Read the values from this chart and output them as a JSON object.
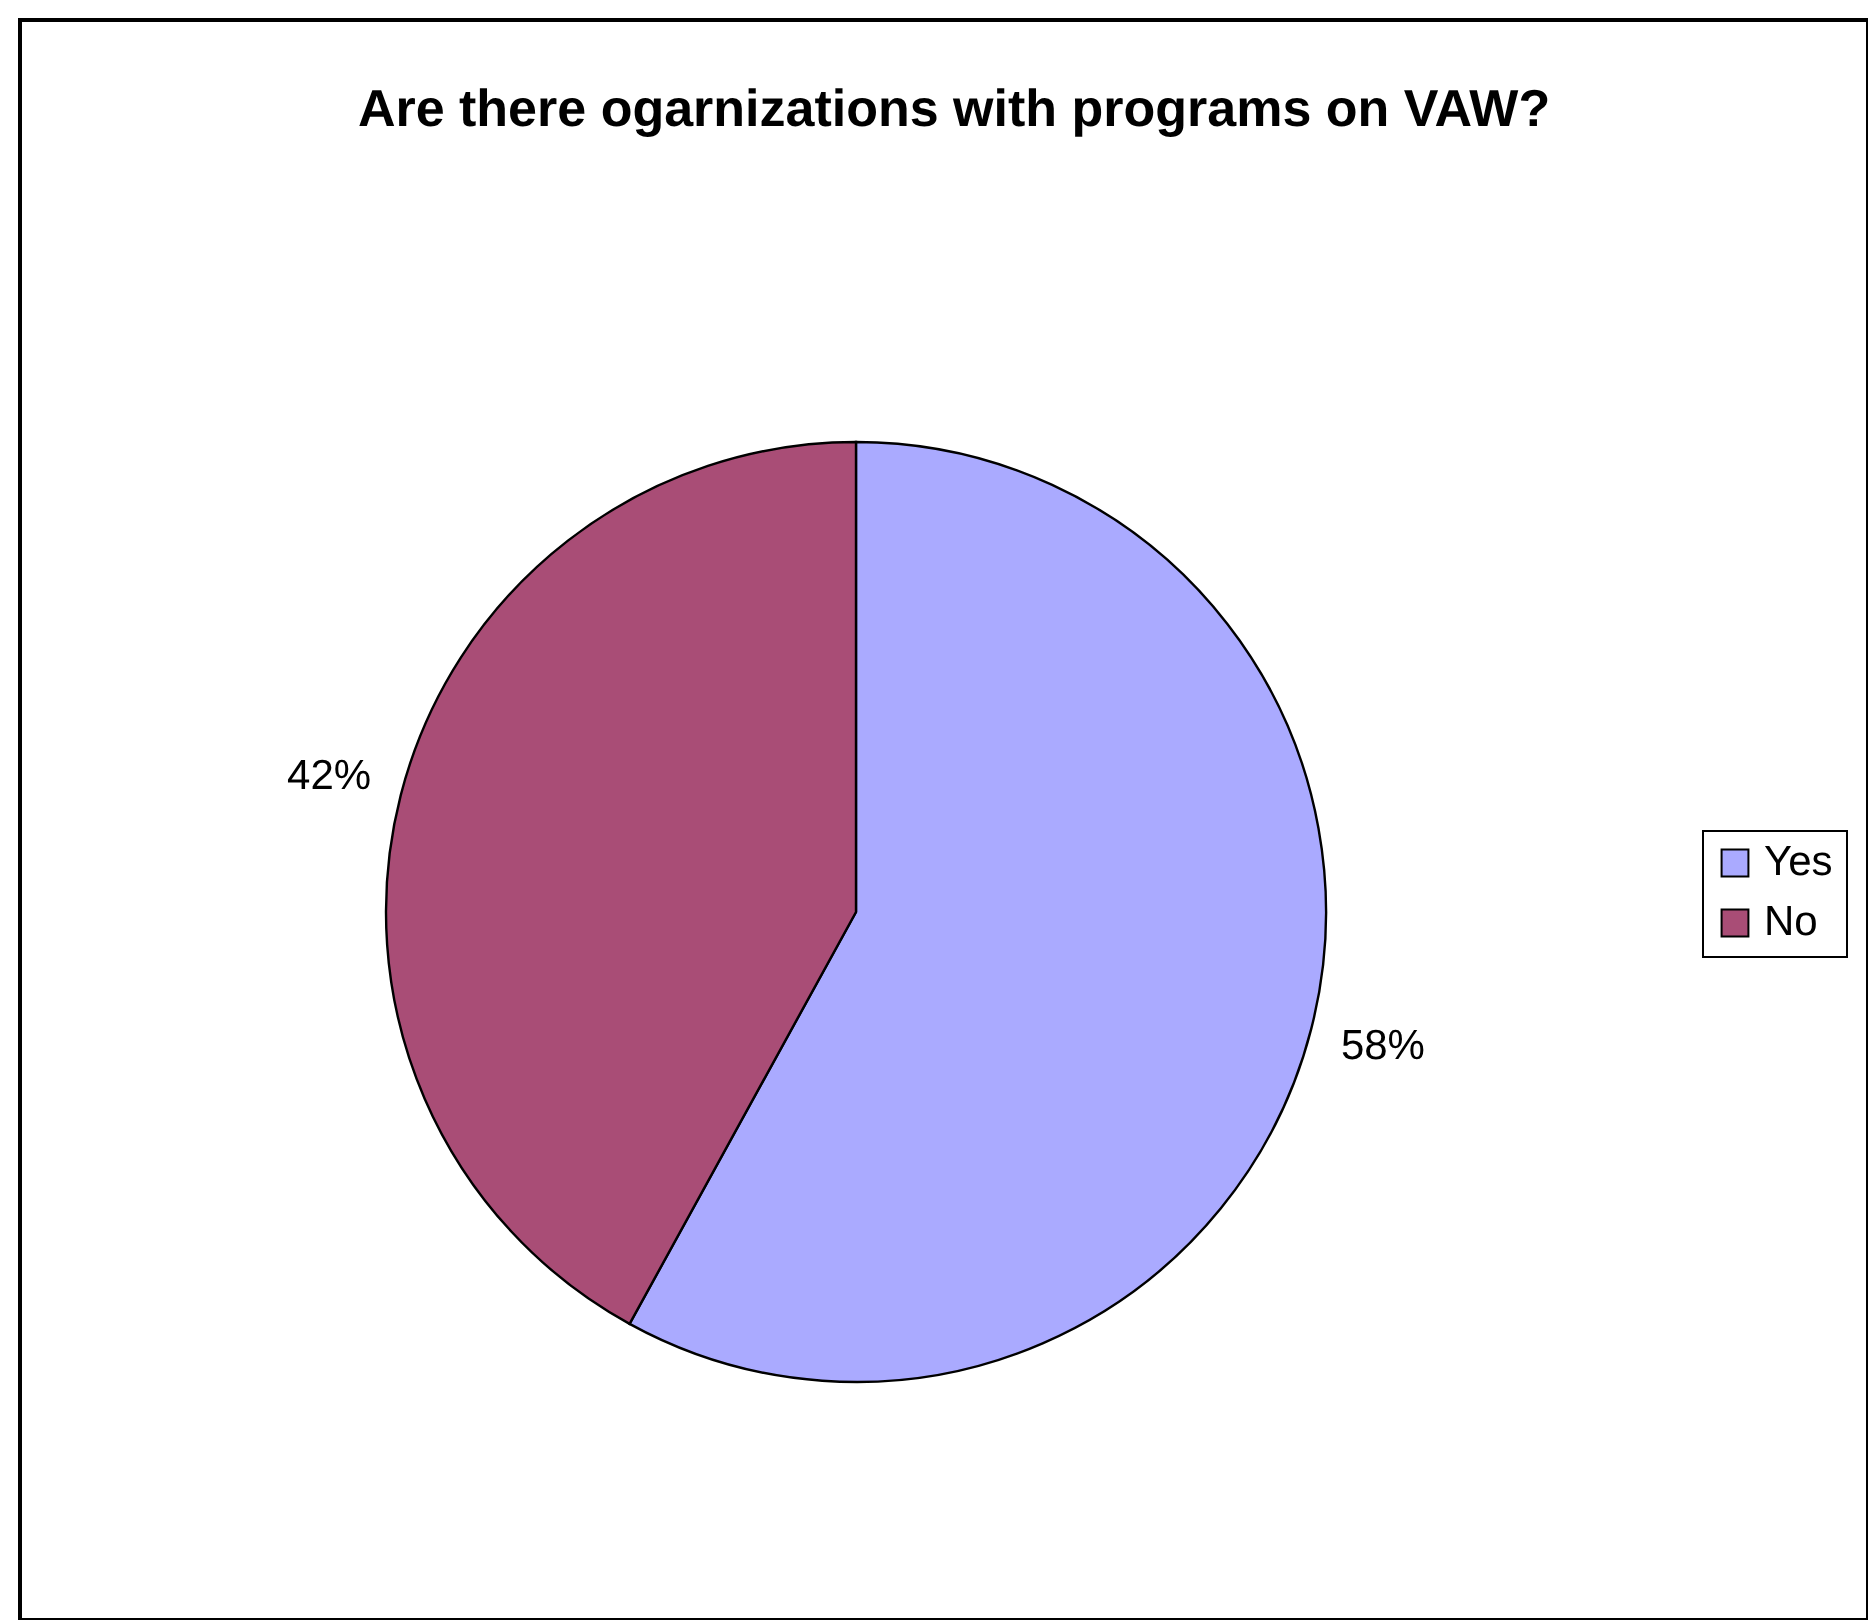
{
  "chart_data": {
    "type": "pie",
    "title": "Are there ogarnizations with programs on VAW?",
    "categories": [
      "Yes",
      "No"
    ],
    "values": [
      58,
      42
    ],
    "colors": [
      "#aaaaff",
      "#a94d76"
    ],
    "value_labels": [
      "58%",
      "42%"
    ],
    "legend": "right"
  }
}
